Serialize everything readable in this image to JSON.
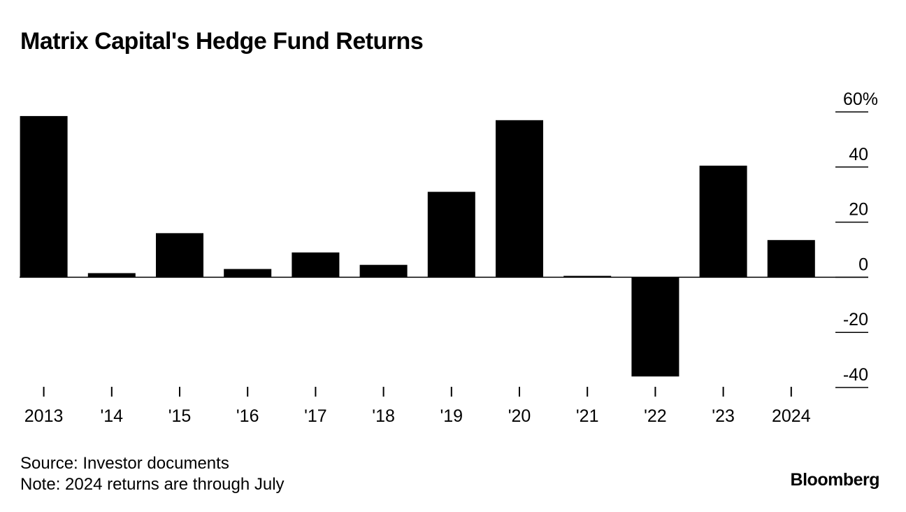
{
  "title": "Matrix Capital's Hedge Fund Returns",
  "footer": {
    "source": "Source: Investor documents",
    "note": "Note: 2024 returns are through July",
    "brand": "Bloomberg"
  },
  "colors": {
    "bar": "#000000",
    "axis": "#000000",
    "background": "#ffffff"
  },
  "chart_data": {
    "type": "bar",
    "title": "Matrix Capital's Hedge Fund Returns",
    "xlabel": "",
    "ylabel": "",
    "categories": [
      "2013",
      "'14",
      "'15",
      "'16",
      "'17",
      "'18",
      "'19",
      "'20",
      "'21",
      "'22",
      "'23",
      "2024"
    ],
    "values": [
      58.5,
      1.5,
      16,
      3,
      9,
      4.5,
      31,
      57,
      0.5,
      -36,
      40.5,
      13.5
    ],
    "ylim": [
      -40,
      60
    ],
    "yticks": [
      60,
      40,
      20,
      0,
      -20,
      -40
    ],
    "ytick_labels": [
      "60%",
      "40",
      "20",
      "0",
      "-20",
      "-40"
    ],
    "y_axis_position": "right",
    "grid": false
  }
}
